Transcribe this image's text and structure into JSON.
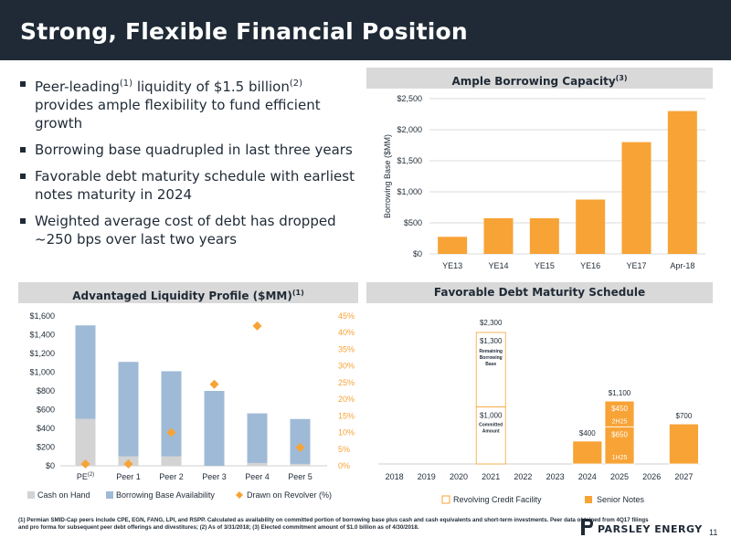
{
  "title": "Strong, Flexible Financial Position",
  "bullets": [
    {
      "pre": "Peer-leading",
      "sup1": "(1)",
      "mid": " liquidity of $1.5 billion",
      "sup2": "(2)",
      "post": " provides ample flexibility to fund efficient growth"
    },
    {
      "pre": "Borrowing base quadrupled in last three years"
    },
    {
      "pre": "Favorable debt maturity schedule with earliest notes maturity in 2024"
    },
    {
      "pre": "Weighted average cost of debt has dropped ~250 bps over last two years"
    }
  ],
  "panels": {
    "borrowing": {
      "title": "Ample Borrowing Capacity",
      "sup": "(3)"
    },
    "liquidity": {
      "title": "Advantaged Liquidity Profile ($MM)",
      "sup": "(1)"
    },
    "maturity": {
      "title": "Favorable Debt Maturity Schedule"
    }
  },
  "colors": {
    "navy": "#1f2a36",
    "orange": "#f7a336",
    "light_blue": "#9fbad6",
    "light_gray": "#d3d3d3",
    "header_gray": "#d9d9d9"
  },
  "chart_data": [
    {
      "id": "borrowing",
      "type": "bar",
      "categories": [
        "YE13",
        "YE14",
        "YE15",
        "YE16",
        "YE17",
        "Apr-18"
      ],
      "values": [
        275,
        575,
        575,
        875,
        1800,
        2300
      ],
      "ylabel": "Borrowing Base ($MM)",
      "ylim": [
        0,
        2500
      ],
      "yticks": [
        0,
        500,
        1000,
        1500,
        2000,
        2500
      ],
      "ytick_labels": [
        "$0",
        "$500",
        "$1,000",
        "$1,500",
        "$2,000",
        "$2,500"
      ],
      "grid": true
    },
    {
      "id": "liquidity",
      "type": "bar",
      "stacked": true,
      "categories": [
        "PE",
        "Peer 1",
        "Peer 2",
        "Peer 3",
        "Peer 4",
        "Peer 5"
      ],
      "first_category_sup": "(2)",
      "series": [
        {
          "name": "Cash on Hand",
          "values": [
            500,
            100,
            100,
            0,
            30,
            20
          ]
        },
        {
          "name": "Borrowing Base Availability",
          "values": [
            1000,
            1010,
            910,
            800,
            530,
            480
          ]
        }
      ],
      "secondary_series": {
        "name": "Drawn on Revolver (%)",
        "values": [
          0,
          0,
          10,
          24.5,
          42,
          5.5
        ]
      },
      "ylim": [
        0,
        1600
      ],
      "yticks": [
        0,
        200,
        400,
        600,
        800,
        1000,
        1200,
        1400,
        1600
      ],
      "ytick_labels": [
        "$0",
        "$200",
        "$400",
        "$600",
        "$800",
        "$1,000",
        "$1,200",
        "$1,400",
        "$1,600"
      ],
      "y2lim": [
        0,
        45
      ],
      "y2ticks": [
        0,
        5,
        10,
        15,
        20,
        25,
        30,
        35,
        40,
        45
      ],
      "y2tick_labels": [
        "0%",
        "5%",
        "10%",
        "15%",
        "20%",
        "25%",
        "30%",
        "35%",
        "40%",
        "45%"
      ],
      "legend": [
        "Cash on Hand",
        "Borrowing Base Availability",
        "Drawn on Revolver (%)"
      ],
      "legend_position": "bottom"
    },
    {
      "id": "maturity",
      "type": "bar",
      "categories": [
        "2018",
        "2019",
        "2020",
        "2021",
        "2022",
        "2023",
        "2024",
        "2025",
        "2026",
        "2027"
      ],
      "revolver": {
        "year": "2021",
        "total_label": "$2,300",
        "committed": 1000,
        "committed_label": "$1,000",
        "committed_text": "Committed Amount",
        "remaining": 1300,
        "remaining_label": "$1,300",
        "remaining_text": "Remaining Borrowing Base"
      },
      "notes": [
        {
          "year": "2024",
          "segments": [
            {
              "value": 400,
              "label": "$400"
            }
          ],
          "total_label": "$400"
        },
        {
          "year": "2025",
          "segments": [
            {
              "value": 650,
              "label": "$650",
              "tag": "1H25"
            },
            {
              "value": 450,
              "label": "$450",
              "tag": "2H25"
            }
          ],
          "total_label": "$1,100"
        },
        {
          "year": "2027",
          "segments": [
            {
              "value": 700,
              "label": "$700"
            }
          ],
          "total_label": "$700"
        }
      ],
      "ylim": [
        0,
        2300
      ],
      "legend": [
        "Revolving Credit Facility",
        "Senior Notes"
      ],
      "legend_position": "bottom"
    }
  ],
  "footnote": "(1) Permian SMID-Cap peers include CPE, EGN, FANG, LPI, and RSPP. Calculated as availability on committed portion of borrowing base plus cash and cash equivalents and short-term investments. Peer data obtained from 4Q17 filings and pro forma for subsequent peer debt offerings and divestitures; (2) As of 3/31/2018; (3) Elected commitment amount of $1.0 billion as of 4/30/2018.",
  "logo_text": "PARSLEY ENERGY",
  "page_number": "11"
}
